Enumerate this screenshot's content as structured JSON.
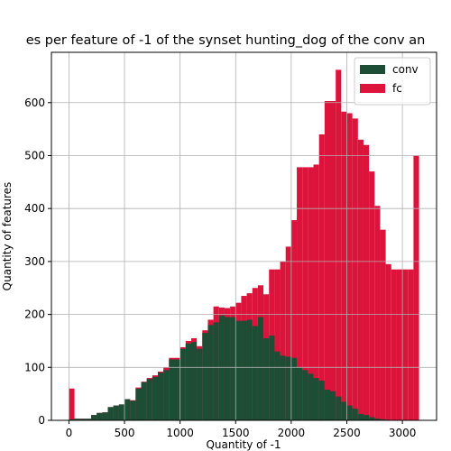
{
  "chart_data": {
    "type": "histogram",
    "title": "es per feature of -1 of the synset hunting_dog of the conv an",
    "xlabel": "Quantity of -1",
    "ylabel": "Quantity of features",
    "bins": [
      0,
      50,
      100,
      150,
      200,
      250,
      300,
      350,
      400,
      450,
      500,
      550,
      600,
      650,
      700,
      750,
      800,
      850,
      900,
      950,
      1000,
      1050,
      1100,
      1150,
      1200,
      1250,
      1300,
      1350,
      1400,
      1450,
      1500,
      1550,
      1600,
      1650,
      1700,
      1750,
      1800,
      1850,
      1900,
      1950,
      2000,
      2050,
      2100,
      2150,
      2200,
      2250,
      2300,
      2350,
      2400,
      2450,
      2500,
      2550,
      2600,
      2650,
      2700,
      2750,
      2800,
      2850,
      2900,
      2950,
      3000,
      3050,
      3100,
      3150
    ],
    "series": [
      {
        "name": "fc",
        "color": "#dc143c",
        "values": [
          60,
          3,
          3,
          3,
          10,
          14,
          15,
          25,
          28,
          30,
          40,
          38,
          62,
          73,
          80,
          85,
          92,
          100,
          118,
          118,
          138,
          150,
          155,
          140,
          170,
          190,
          215,
          213,
          212,
          215,
          222,
          235,
          240,
          250,
          255,
          238,
          285,
          285,
          300,
          328,
          378,
          478,
          478,
          478,
          483,
          540,
          603,
          603,
          662,
          583,
          580,
          570,
          530,
          520,
          470,
          405,
          360,
          295,
          285,
          285,
          285,
          285,
          500
        ]
      },
      {
        "name": "conv",
        "color": "#1e4d35",
        "values": [
          2,
          3,
          3,
          3,
          10,
          14,
          15,
          25,
          28,
          30,
          40,
          37,
          60,
          72,
          78,
          82,
          90,
          95,
          115,
          115,
          135,
          145,
          148,
          135,
          165,
          180,
          185,
          198,
          195,
          195,
          188,
          188,
          190,
          178,
          195,
          155,
          160,
          130,
          122,
          120,
          118,
          100,
          95,
          88,
          80,
          75,
          58,
          55,
          45,
          35,
          28,
          22,
          12,
          10,
          6,
          3,
          2,
          1,
          0,
          0,
          0,
          0,
          0
        ]
      }
    ],
    "legend_order": [
      "conv",
      "fc"
    ],
    "xlim": [
      -157.5,
      3307.5
    ],
    "xticks": [
      0,
      500,
      1000,
      1500,
      2000,
      2500,
      3000
    ],
    "ylim": [
      0,
      695
    ],
    "yticks": [
      0,
      100,
      200,
      300,
      400,
      500,
      600
    ],
    "grid": true,
    "legend": "upper right"
  }
}
